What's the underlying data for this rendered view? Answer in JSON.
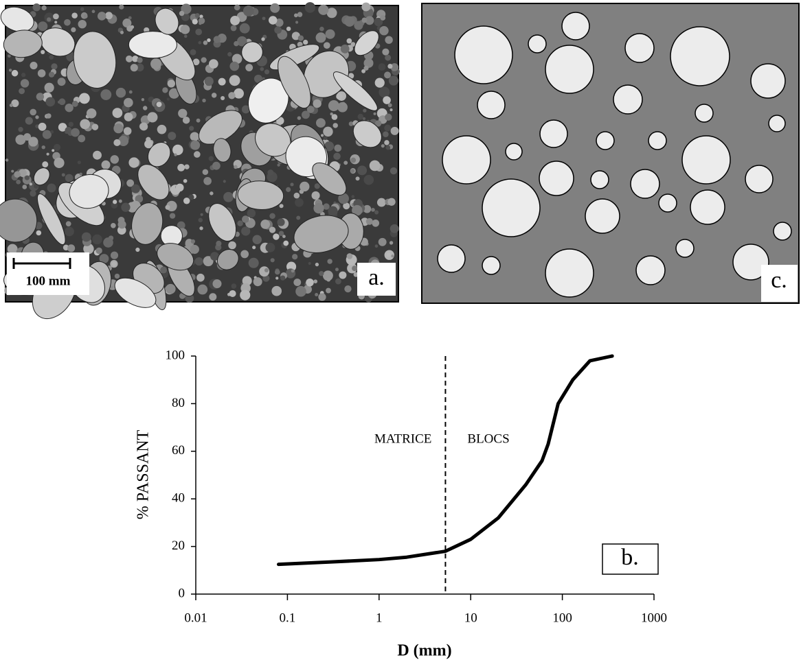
{
  "photo": {
    "scale_label": "100 mm",
    "label": "a."
  },
  "diagram": {
    "label": "c."
  },
  "chart_data": {
    "type": "line",
    "xlabel": "D  (mm)",
    "ylabel": "% PASSANT",
    "annotations": [
      "MATRICE",
      "BLOCS"
    ],
    "panel_label": "b.",
    "divider_x": 5.3,
    "xscale": "log",
    "xlim": [
      0.01,
      1000
    ],
    "xticks": [
      0.01,
      0.1,
      1,
      10,
      100,
      1000
    ],
    "ylim": [
      0,
      100
    ],
    "yticks": [
      0,
      20,
      40,
      60,
      80,
      100
    ],
    "series": [
      {
        "color": "#000000",
        "x": [
          0.08,
          0.3,
          1,
          2,
          5.3,
          10,
          20,
          40,
          60,
          70,
          90,
          130,
          200,
          350
        ],
        "values": [
          12.5,
          13.5,
          14.5,
          15.5,
          18,
          23,
          32,
          46,
          56,
          63,
          80,
          90,
          98,
          100
        ]
      }
    ]
  }
}
